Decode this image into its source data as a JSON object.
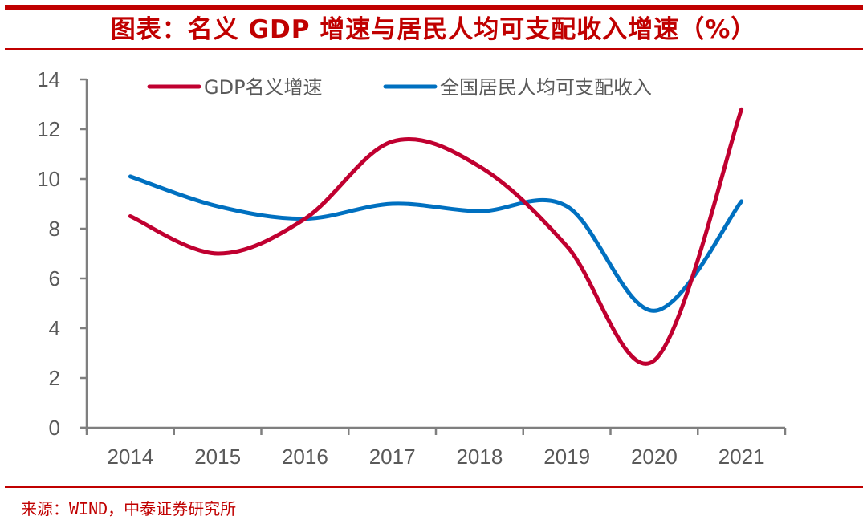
{
  "header": {
    "title": "图表：名义 GDP 增速与居民人均可支配收入增速（%）"
  },
  "footer": {
    "source": "来源：WIND，中泰证券研究所"
  },
  "chart_data": {
    "type": "line",
    "title": "图表：名义 GDP 增速与居民人均可支配收入增速（%）",
    "xlabel": "",
    "ylabel": "",
    "categories": [
      "2014",
      "2015",
      "2016",
      "2017",
      "2018",
      "2019",
      "2020",
      "2021"
    ],
    "ylim": [
      0,
      14
    ],
    "yticks": [
      0,
      2,
      4,
      6,
      8,
      10,
      12,
      14
    ],
    "grid": false,
    "smooth": true,
    "legend_position": "top",
    "series": [
      {
        "name": "GDP名义增速",
        "color": "#c00030",
        "values": [
          8.5,
          7.0,
          8.4,
          11.5,
          10.5,
          7.3,
          2.7,
          12.8
        ]
      },
      {
        "name": "全国居民人均可支配收入",
        "color": "#0070c0",
        "values": [
          10.1,
          8.9,
          8.4,
          9.0,
          8.7,
          8.9,
          4.7,
          9.1
        ]
      }
    ]
  }
}
